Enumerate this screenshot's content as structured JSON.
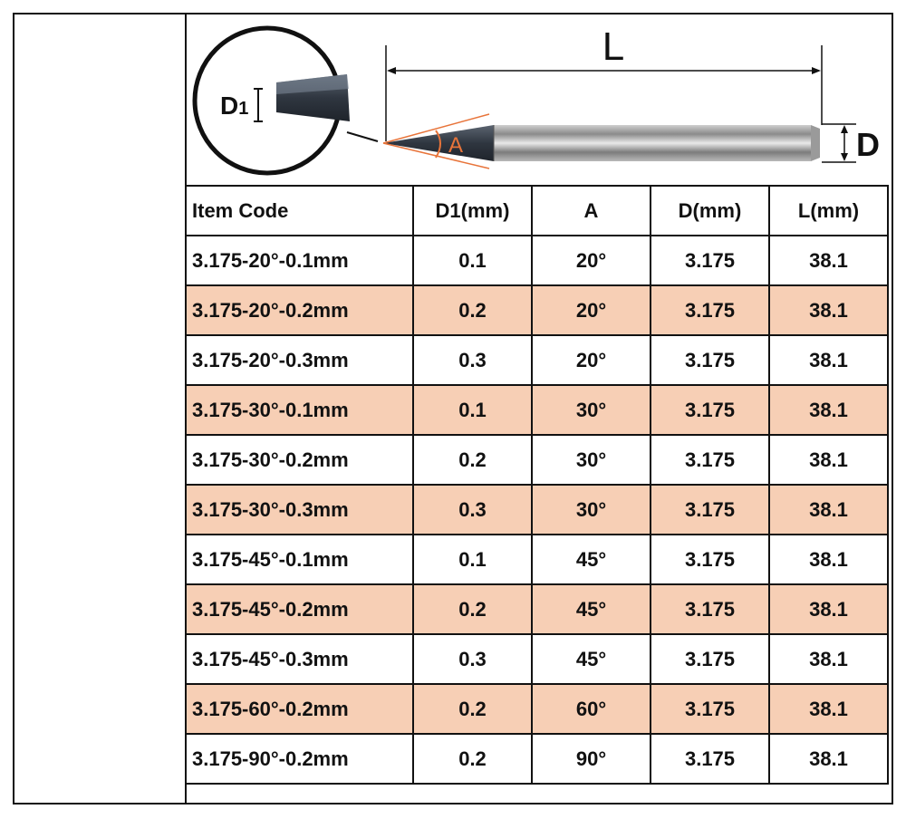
{
  "diagram": {
    "label_L": "L",
    "label_D": "D",
    "label_A": "A",
    "label_D1_main": "D",
    "label_D1_sub": "1"
  },
  "table": {
    "headers": [
      "Item Code",
      "D1(mm)",
      "A",
      "D(mm)",
      "L(mm)"
    ],
    "rows": [
      {
        "code": "3.175-20°-0.1mm",
        "d1": "0.1",
        "a": "20°",
        "d": "3.175",
        "l": "38.1",
        "highlight": false
      },
      {
        "code": "3.175-20°-0.2mm",
        "d1": "0.2",
        "a": "20°",
        "d": "3.175",
        "l": "38.1",
        "highlight": true
      },
      {
        "code": "3.175-20°-0.3mm",
        "d1": "0.3",
        "a": "20°",
        "d": "3.175",
        "l": "38.1",
        "highlight": false
      },
      {
        "code": "3.175-30°-0.1mm",
        "d1": "0.1",
        "a": "30°",
        "d": "3.175",
        "l": "38.1",
        "highlight": true
      },
      {
        "code": "3.175-30°-0.2mm",
        "d1": "0.2",
        "a": "30°",
        "d": "3.175",
        "l": "38.1",
        "highlight": false
      },
      {
        "code": "3.175-30°-0.3mm",
        "d1": "0.3",
        "a": "30°",
        "d": "3.175",
        "l": "38.1",
        "highlight": true
      },
      {
        "code": "3.175-45°-0.1mm",
        "d1": "0.1",
        "a": "45°",
        "d": "3.175",
        "l": "38.1",
        "highlight": false
      },
      {
        "code": "3.175-45°-0.2mm",
        "d1": "0.2",
        "a": "45°",
        "d": "3.175",
        "l": "38.1",
        "highlight": true
      },
      {
        "code": "3.175-45°-0.3mm",
        "d1": "0.3",
        "a": "45°",
        "d": "3.175",
        "l": "38.1",
        "highlight": false
      },
      {
        "code": "3.175-60°-0.2mm",
        "d1": "0.2",
        "a": "60°",
        "d": "3.175",
        "l": "38.1",
        "highlight": true
      },
      {
        "code": "3.175-90°-0.2mm",
        "d1": "0.2",
        "a": "90°",
        "d": "3.175",
        "l": "38.1",
        "highlight": false
      }
    ]
  },
  "colors": {
    "highlight_row": "#f7cfb5",
    "angle_marker": "#e8743a",
    "border": "#111111"
  }
}
